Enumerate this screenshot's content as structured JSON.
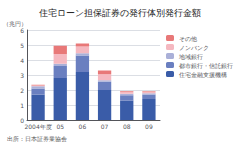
{
  "chart_data": {
    "type": "bar",
    "stacked": true,
    "title": "住宅ローン担保証券の発行体別発行金額",
    "ylabel": "（兆円）",
    "annotation": "出所：日本証券業協会",
    "categories": [
      "2004年度",
      "05",
      "06",
      "07",
      "08",
      "09"
    ],
    "series": [
      {
        "name": "住宅金融支援機構",
        "color": "#3a5ca8",
        "values": [
          1.7,
          2.8,
          3.2,
          2.0,
          1.3,
          1.4
        ]
      },
      {
        "name": "都市銀行・信託銀行",
        "color": "#6a7fc0",
        "values": [
          0.4,
          0.8,
          1.1,
          0.55,
          0.35,
          0.3
        ]
      },
      {
        "name": "地域銀行",
        "color": "#aab0d8",
        "values": [
          0.15,
          0.15,
          0.15,
          0.1,
          0.1,
          0.08
        ]
      },
      {
        "name": "ノンバンク",
        "color": "#f5b8c0",
        "values": [
          0.05,
          0.65,
          0.45,
          0.4,
          0.12,
          0.08
        ]
      },
      {
        "name": "その他",
        "color": "#e87878",
        "values": [
          0.05,
          0.55,
          0.2,
          0.25,
          0.05,
          0.05
        ]
      }
    ],
    "ylim": [
      0,
      6
    ],
    "yticks": [
      0,
      1,
      2,
      3,
      4,
      5,
      6
    ],
    "grid": true,
    "legend": "upper right"
  }
}
